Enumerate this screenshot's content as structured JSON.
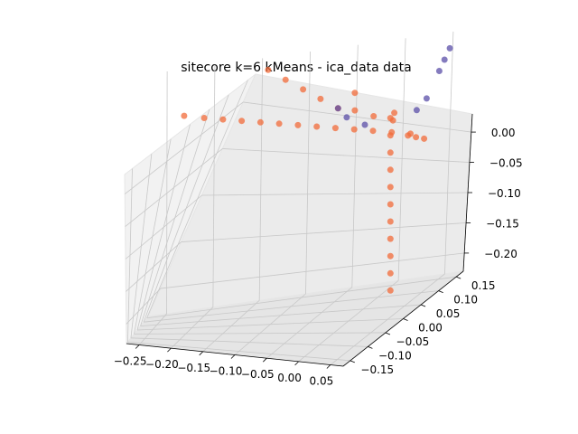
{
  "chart_data": {
    "type": "scatter",
    "projection": "3d",
    "title": "sitecore k=6 kMeans - ica_data data",
    "xlabel": "",
    "ylabel": "",
    "zlabel": "",
    "grid": true,
    "legend": "none",
    "xlim": [
      -0.27,
      0.07
    ],
    "ylim": [
      -0.17,
      0.17
    ],
    "zlim": [
      -0.23,
      0.03
    ],
    "xticks": [
      "−0.25",
      "−0.20",
      "−0.15",
      "−0.10",
      "−0.05",
      "0.00",
      "0.05"
    ],
    "xtick_values": [
      -0.25,
      -0.2,
      -0.15,
      -0.1,
      -0.05,
      0.0,
      0.05
    ],
    "yticks": [
      "−0.15",
      "−0.10",
      "−0.05",
      "0.00",
      "0.05",
      "0.10",
      "0.15"
    ],
    "ytick_values": [
      -0.15,
      -0.1,
      -0.05,
      0.0,
      0.05,
      0.1,
      0.15
    ],
    "zticks": [
      "0.00",
      "−0.05",
      "−0.10",
      "−0.15",
      "−0.20"
    ],
    "ztick_values": [
      0.0,
      -0.05,
      -0.1,
      -0.15,
      -0.2
    ],
    "colors": {
      "pane_left": "#f2f2f2",
      "pane_back": "#ebebeb",
      "pane_floor": "#e5e5e5",
      "cluster_orange": "#f26b3a",
      "cluster_purple": "#5b4fa8"
    },
    "series": [
      {
        "color": "#f26b3a",
        "points": [
          [
            -0.22,
            0.0,
            0.01
          ],
          [
            -0.2,
            0.02,
            0.0
          ],
          [
            -0.18,
            0.02,
            -0.005
          ],
          [
            -0.16,
            0.02,
            -0.01
          ],
          [
            -0.14,
            0.02,
            -0.015
          ],
          [
            -0.12,
            0.02,
            -0.02
          ],
          [
            -0.1,
            0.02,
            -0.025
          ],
          [
            -0.08,
            0.02,
            -0.03
          ],
          [
            -0.06,
            0.02,
            -0.035
          ],
          [
            -0.04,
            0.02,
            -0.04
          ],
          [
            -0.02,
            0.02,
            -0.045
          ],
          [
            0.0,
            0.02,
            -0.05
          ],
          [
            0.02,
            0.02,
            -0.055
          ],
          [
            -0.04,
            0.03,
            0.0
          ],
          [
            -0.04,
            0.03,
            -0.02
          ],
          [
            -0.02,
            0.03,
            -0.03
          ],
          [
            0.0,
            0.0,
            -0.03
          ],
          [
            0.0,
            0.0,
            -0.05
          ],
          [
            0.0,
            0.0,
            -0.07
          ],
          [
            0.0,
            0.0,
            -0.09
          ],
          [
            0.0,
            0.0,
            -0.11
          ],
          [
            0.0,
            0.0,
            -0.13
          ],
          [
            0.0,
            0.0,
            -0.15
          ],
          [
            0.0,
            0.0,
            -0.17
          ],
          [
            0.0,
            0.0,
            -0.19
          ],
          [
            0.0,
            0.0,
            -0.21
          ],
          [
            0.0,
            0.0,
            -0.23
          ],
          [
            0.02,
            -0.02,
            -0.05
          ],
          [
            0.03,
            -0.04,
            -0.05
          ],
          [
            0.04,
            -0.06,
            -0.05
          ],
          [
            0.0,
            0.04,
            -0.04
          ],
          [
            0.0,
            0.06,
            -0.035
          ],
          [
            -0.06,
            0.06,
            -0.02
          ],
          [
            -0.08,
            0.08,
            -0.01
          ],
          [
            -0.1,
            0.1,
            0.0
          ],
          [
            -0.12,
            0.12,
            0.01
          ],
          [
            -0.14,
            0.14,
            0.02
          ]
        ]
      },
      {
        "color": "#5b4fa8",
        "points": [
          [
            0.05,
            0.03,
            0.01
          ],
          [
            0.055,
            0.04,
            0.02
          ],
          [
            0.06,
            0.05,
            0.03
          ],
          [
            0.04,
            -0.02,
            -0.01
          ],
          [
            0.03,
            -0.03,
            -0.02
          ],
          [
            -0.03,
            0.04,
            -0.04
          ],
          [
            -0.05,
            0.05,
            -0.03
          ],
          [
            -0.06,
            0.06,
            -0.02
          ]
        ]
      }
    ]
  }
}
